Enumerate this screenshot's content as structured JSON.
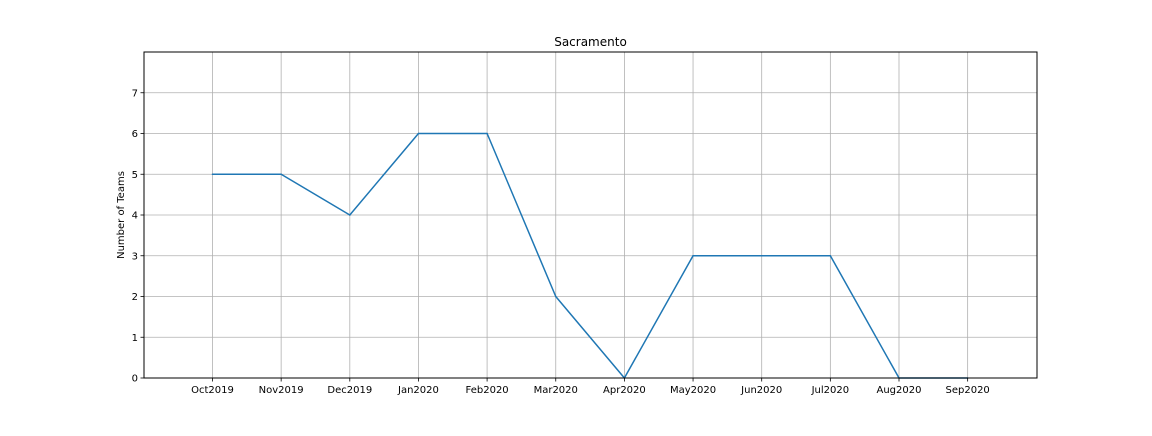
{
  "chart_data": {
    "type": "line",
    "title": "Sacramento",
    "xlabel": "",
    "ylabel": "Number of Teams",
    "categories": [
      "Oct2019",
      "Nov2019",
      "Dec2019",
      "Jan2020",
      "Feb2020",
      "Mar2020",
      "Apr2020",
      "May2020",
      "Jun2020",
      "Jul2020",
      "Aug2020",
      "Sep2020"
    ],
    "series": [
      {
        "values": [
          5,
          5,
          4,
          6,
          6,
          2,
          0,
          3,
          3,
          3,
          0,
          0
        ]
      }
    ],
    "ylim": [
      0,
      8
    ],
    "yticks": [
      0,
      1,
      2,
      3,
      4,
      5,
      6,
      7
    ],
    "grid": true,
    "colors": {
      "line": "#1f77b4",
      "grid": "#b0b0b0",
      "axes": "#000000"
    }
  }
}
